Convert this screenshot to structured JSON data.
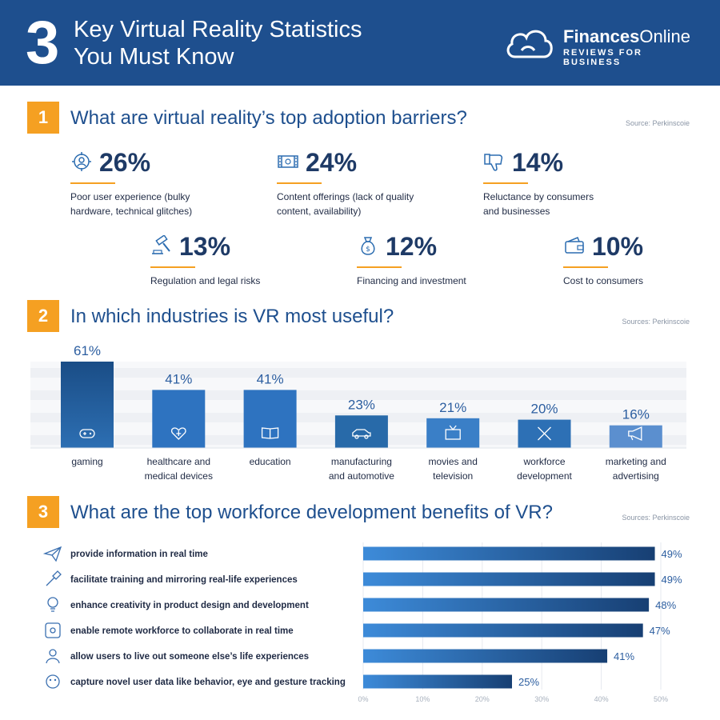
{
  "header": {
    "number": "3",
    "title_line1": "Key Virtual Reality Statistics",
    "title_line2": "You Must Know",
    "brand_name_bold": "Finances",
    "brand_name_rest": "Online",
    "brand_tagline": "REVIEWS FOR BUSINESS"
  },
  "section1": {
    "badge": "1",
    "title": "What are virtual reality’s top adoption barriers?",
    "source": "Source: Perkinscoie",
    "stats": [
      {
        "value": "26%",
        "line1": "Poor user experience (bulky",
        "line2": "hardware, technical glitches)",
        "icon": "target-user-icon"
      },
      {
        "value": "24%",
        "line1": "Content offerings (lack of quality",
        "line2": "content, availability)",
        "icon": "film-strip-icon"
      },
      {
        "value": "14%",
        "line1": "Reluctance by consumers",
        "line2": "and businesses",
        "icon": "thumbs-down-icon"
      },
      {
        "value": "13%",
        "line1": "Regulation and legal risks",
        "line2": "",
        "icon": "gavel-icon"
      },
      {
        "value": "12%",
        "line1": "Financing and investment",
        "line2": "",
        "icon": "money-bag-icon"
      },
      {
        "value": "10%",
        "line1": "Cost to consumers",
        "line2": "",
        "icon": "wallet-icon"
      }
    ]
  },
  "section2": {
    "badge": "2",
    "title": "In which industries is VR most useful?",
    "source": "Sources: Perkinscoie"
  },
  "section3": {
    "badge": "3",
    "title": "What are the top workforce development benefits of VR?",
    "source": "Sources: Perkinscoie"
  },
  "colors": {
    "header": "#1e4f8e",
    "accent": "#f5a022",
    "bar_dark": "#1b4f86",
    "bar_light": "#5b8fcf"
  },
  "chart_data": [
    {
      "type": "bar",
      "categories": [
        "gaming",
        "healthcare and medical devices",
        "education",
        "manufacturing and automotive",
        "movies and television",
        "workforce development",
        "marketing and advertising"
      ],
      "category_lines": [
        [
          "gaming"
        ],
        [
          "healthcare and",
          "medical devices"
        ],
        [
          "education"
        ],
        [
          "manufacturing",
          "and automotive"
        ],
        [
          "movies and",
          "television"
        ],
        [
          "workforce",
          "development"
        ],
        [
          "marketing and",
          "advertising"
        ]
      ],
      "values": [
        61,
        41,
        41,
        23,
        21,
        20,
        16
      ],
      "value_labels": [
        "61%",
        "41%",
        "41%",
        "23%",
        "21%",
        "20%",
        "16%"
      ],
      "icons": [
        "gamepad-icon",
        "heart-medical-icon",
        "book-icon",
        "car-icon",
        "tv-icon",
        "tools-icon",
        "megaphone-icon"
      ],
      "ylim": [
        0,
        61
      ],
      "grid": true
    },
    {
      "type": "bar",
      "orientation": "horizontal",
      "categories": [
        "provide information in real time",
        "facilitate training and mirroring real-life experiences",
        "enhance creativity in product design and development",
        "enable remote workforce to collaborate in real time",
        "allow users to live out someone else’s life experiences",
        "capture novel user data like behavior, eye and gesture tracking"
      ],
      "values": [
        49,
        49,
        48,
        47,
        41,
        25
      ],
      "value_labels": [
        "49%",
        "49%",
        "48%",
        "47%",
        "41%",
        "25%"
      ],
      "icons": [
        "paper-plane-icon",
        "training-icon",
        "lightbulb-icon",
        "collaboration-icon",
        "user-icon",
        "face-tracking-icon"
      ],
      "xlim": [
        0,
        50
      ],
      "x_ticks": [
        "0%",
        "10%",
        "20%",
        "30%",
        "40%",
        "50%"
      ],
      "grid": true
    }
  ]
}
